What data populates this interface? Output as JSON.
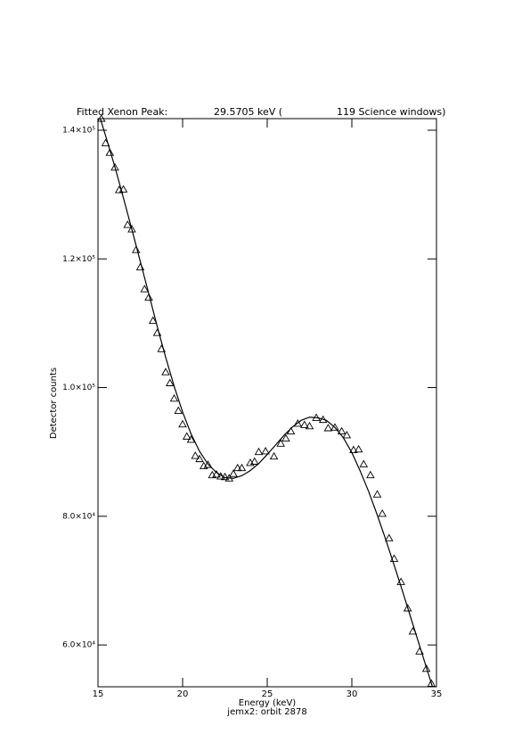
{
  "chart_data": {
    "type": "scatter",
    "title_parts": [
      "Fitted Xenon Peak:",
      "29.5705 keV (",
      "119 Science windows)"
    ],
    "x_label": "Energy (keV)",
    "y_label": "Detector counts",
    "subtitle": "jemx2: orbit 2878",
    "xlim": [
      15,
      35
    ],
    "xticks": [
      15,
      20,
      25,
      30,
      35
    ],
    "ylim": [
      53500,
      141800
    ],
    "yticks": [
      {
        "value": 60000,
        "label": "6.0×10⁴"
      },
      {
        "value": 80000,
        "label": "8.0×10⁴"
      },
      {
        "value": 100000,
        "label": "1.0×10⁵"
      },
      {
        "value": 120000,
        "label": "1.2×10⁵"
      },
      {
        "value": 140000,
        "label": "1.4×10⁵"
      }
    ],
    "series": [
      {
        "kind": "points",
        "color": "#000000",
        "x": [
          15.2,
          15.45,
          15.7,
          16.0,
          16.25,
          16.5,
          16.75,
          17.0,
          17.25,
          17.5,
          17.75,
          18.0,
          18.25,
          18.5,
          18.75,
          19.0,
          19.25,
          19.5,
          19.75,
          20.0,
          20.25,
          20.5,
          20.75,
          21.0,
          21.25,
          21.5,
          21.75,
          22.0,
          22.25,
          22.5,
          22.75,
          23.0,
          23.25,
          23.5,
          24.0,
          24.25,
          24.5,
          24.9,
          25.4,
          25.8,
          26.1,
          26.4,
          26.8,
          27.2,
          27.5,
          27.9,
          28.3,
          28.6,
          29.0,
          29.4,
          29.7,
          30.1,
          30.4,
          30.7,
          31.1,
          31.5,
          31.8,
          32.2,
          32.5,
          32.9,
          33.3,
          33.6,
          34.0,
          34.4,
          34.7
        ],
        "values": [
          141800,
          138000,
          136500,
          134200,
          130700,
          130800,
          125300,
          124600,
          121400,
          118700,
          115300,
          114000,
          110400,
          108500,
          106000,
          102400,
          100700,
          98300,
          96400,
          94300,
          92400,
          91900,
          89400,
          88900,
          87800,
          88000,
          86400,
          86500,
          86200,
          86100,
          85900,
          86600,
          87500,
          87500,
          88300,
          88500,
          90000,
          90100,
          89300,
          91300,
          92100,
          93200,
          94400,
          94200,
          94000,
          95300,
          95000,
          93700,
          93800,
          93200,
          92600,
          90300,
          90400,
          88100,
          86400,
          83400,
          80400,
          76600,
          73400,
          69800,
          65700,
          62100,
          59000,
          56300,
          54000
        ]
      },
      {
        "kind": "line",
        "color": "#000000",
        "x": [
          15,
          15.5,
          16,
          16.5,
          17,
          17.5,
          18,
          18.5,
          19,
          19.5,
          20,
          20.5,
          21,
          21.5,
          22,
          22.5,
          23,
          23.5,
          24,
          24.5,
          25,
          25.5,
          26,
          26.5,
          27,
          27.5,
          28,
          28.5,
          29,
          29.5,
          30,
          30.5,
          31,
          31.5,
          32,
          32.5,
          33,
          33.5,
          34,
          34.5,
          35
        ],
        "values": [
          143000,
          138700,
          134300,
          129500,
          124600,
          119600,
          114600,
          109500,
          104700,
          100200,
          96200,
          92800,
          90100,
          88100,
          86800,
          86000,
          85900,
          86300,
          87100,
          88200,
          89600,
          91100,
          92600,
          93900,
          94900,
          95400,
          95300,
          94900,
          93800,
          92200,
          89900,
          87000,
          83800,
          80200,
          76400,
          72400,
          68300,
          64100,
          59900,
          55700,
          51500
        ]
      }
    ]
  }
}
